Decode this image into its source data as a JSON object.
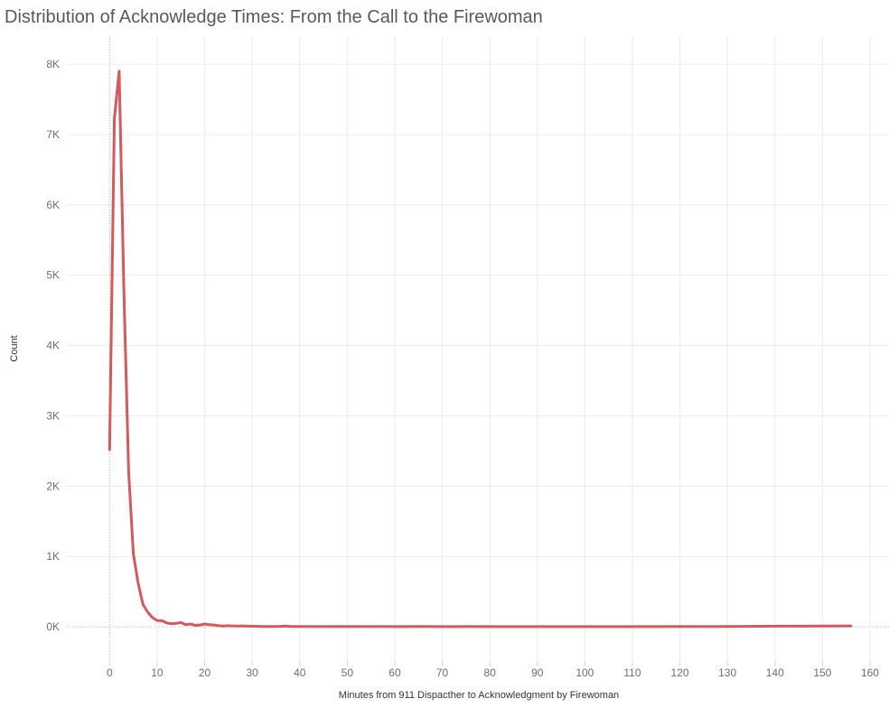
{
  "chart_data": {
    "type": "line",
    "title": "Distribution of Acknowledge Times: From the Call to the Firewoman",
    "xlabel": "Minutes from 911 Dispacther to Acknowledgment by Firewoman",
    "ylabel": "Count",
    "xlim": [
      -9,
      164
    ],
    "ylim": [
      -500,
      8400
    ],
    "x_ticks": [
      0,
      10,
      20,
      30,
      40,
      50,
      60,
      70,
      80,
      90,
      100,
      110,
      120,
      130,
      140,
      150,
      160
    ],
    "y_ticks": [
      0,
      1000,
      2000,
      3000,
      4000,
      5000,
      6000,
      7000,
      8000
    ],
    "y_tick_labels": [
      "0K",
      "1K",
      "2K",
      "3K",
      "4K",
      "5K",
      "6K",
      "7K",
      "8K"
    ],
    "grid": true,
    "series_color": "#d9575b",
    "series": [
      {
        "x": [
          0,
          1,
          2,
          3,
          4,
          5,
          6,
          7,
          8,
          9,
          10,
          11,
          12,
          13,
          14,
          15,
          16,
          17,
          18,
          19,
          20,
          21,
          22,
          23,
          24,
          25,
          26,
          27,
          28,
          29,
          30,
          32,
          34,
          36,
          37,
          38,
          40,
          42,
          45,
          50,
          55,
          58,
          60,
          65,
          70,
          75,
          80,
          85,
          90,
          100,
          110,
          120,
          130,
          140,
          150,
          156
        ],
        "y": [
          2520,
          7230,
          7900,
          4800,
          2200,
          1040,
          620,
          320,
          210,
          130,
          90,
          85,
          55,
          45,
          50,
          60,
          30,
          40,
          20,
          25,
          40,
          30,
          25,
          15,
          10,
          15,
          12,
          10,
          12,
          8,
          8,
          5,
          4,
          6,
          10,
          5,
          4,
          3,
          4,
          3,
          3,
          5,
          2,
          3,
          2,
          3,
          2,
          2,
          2,
          2,
          2,
          3,
          3,
          8,
          10,
          12
        ]
      }
    ]
  }
}
